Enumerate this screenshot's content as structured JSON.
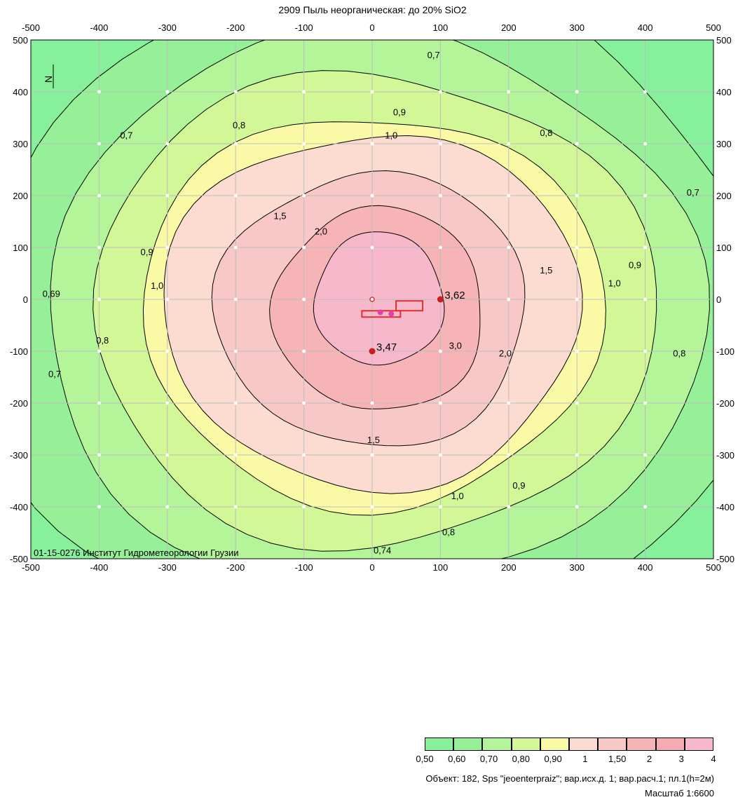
{
  "title": "2909 Пыль неорганическая: до 20% SiO2",
  "map": {
    "x_ticks": [
      "-500",
      "-400",
      "-300",
      "-200",
      "-100",
      "0",
      "100",
      "200",
      "300",
      "400",
      "500"
    ],
    "y_ticks": [
      "500",
      "400",
      "300",
      "200",
      "100",
      "0",
      "-100",
      "-200",
      "-300",
      "-400",
      "-500"
    ],
    "x_range": [
      -500,
      500
    ],
    "y_range": [
      -500,
      500
    ],
    "grid": true,
    "institute_text": "01-15-0276 Институт Гидрометеорологии Грузии",
    "north_arrow_label": "N",
    "contour_labels": [
      {
        "text": "0,7",
        "x": 90,
        "y": 465
      },
      {
        "text": "0,7",
        "x": -360,
        "y": 310
      },
      {
        "text": "0,8",
        "x": -195,
        "y": 330
      },
      {
        "text": "0,9",
        "x": 40,
        "y": 355
      },
      {
        "text": "1,0",
        "x": 28,
        "y": 310
      },
      {
        "text": "0,8",
        "x": 255,
        "y": 315
      },
      {
        "text": "0,7",
        "x": 470,
        "y": 200
      },
      {
        "text": "1,5",
        "x": -135,
        "y": 155
      },
      {
        "text": "2,0",
        "x": -75,
        "y": 125
      },
      {
        "text": "0,9",
        "x": -330,
        "y": 85
      },
      {
        "text": "1,0",
        "x": -315,
        "y": 20
      },
      {
        "text": "1,5",
        "x": 255,
        "y": 50
      },
      {
        "text": "1,0",
        "x": 355,
        "y": 25
      },
      {
        "text": "0,9",
        "x": 385,
        "y": 60
      },
      {
        "text": "0,69",
        "x": -470,
        "y": 5
      },
      {
        "text": "0,8",
        "x": -395,
        "y": -85
      },
      {
        "text": "0,7",
        "x": -465,
        "y": -150
      },
      {
        "text": "3,0",
        "x": 122,
        "y": -95
      },
      {
        "text": "2,0",
        "x": 195,
        "y": -110
      },
      {
        "text": "0,8",
        "x": 450,
        "y": -110
      },
      {
        "text": "1,5",
        "x": 2,
        "y": -277
      },
      {
        "text": "1,0",
        "x": 125,
        "y": -385
      },
      {
        "text": "0,9",
        "x": 215,
        "y": -365
      },
      {
        "text": "0,8",
        "x": 112,
        "y": -455
      },
      {
        "text": "0,74",
        "x": 15,
        "y": -490
      }
    ],
    "points": [
      {
        "label": "3,62",
        "x": 100,
        "y": 0
      },
      {
        "label": "3,47",
        "x": 0,
        "y": -100
      }
    ]
  },
  "legend": {
    "colors": [
      "#86f09a",
      "#96f098",
      "#b4f59a",
      "#d2f796",
      "#fafaa6",
      "#fcdcd0",
      "#f8c8c6",
      "#f6b4b6",
      "#f6aab4",
      "#f8b8cc"
    ],
    "labels": [
      "0,50",
      "0,60",
      "0,70",
      "0,80",
      "0,90",
      "1",
      "1,50",
      "2",
      "3",
      "4"
    ]
  },
  "footer": {
    "object_line": "Объект: 182, Sps \"jeoenterpraiz\"; вар.исх.д. 1; вар.расч.1; пл.1(h=2м)",
    "scale_line": "Масштаб 1:6600"
  }
}
